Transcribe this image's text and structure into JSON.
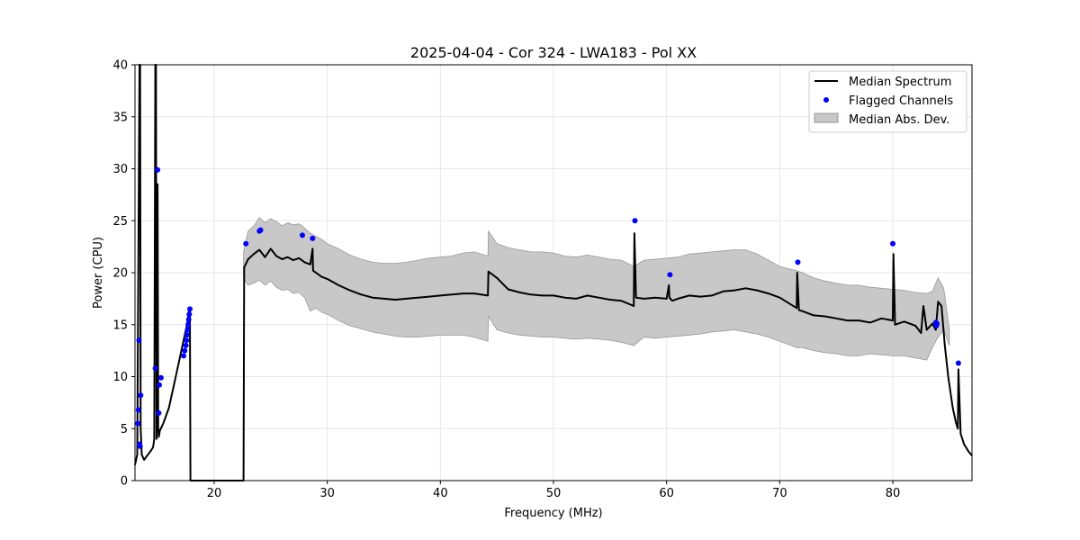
{
  "chart_data": {
    "type": "line",
    "title": "2025-04-04 - Cor 324 - LWA183 - Pol XX",
    "xlabel": "Frequency (MHz)",
    "ylabel": "Power (CPU)",
    "xlim": [
      13.0,
      87.0
    ],
    "ylim": [
      0,
      40
    ],
    "xticks": [
      20,
      30,
      40,
      50,
      60,
      70,
      80
    ],
    "yticks": [
      0,
      5,
      10,
      15,
      20,
      25,
      30,
      35,
      40
    ],
    "grid": true,
    "legend_position": "top-right",
    "colors": {
      "median": "#000000",
      "flagged": "#0000ff",
      "mad_fill": "#c8c8c8",
      "mad_edge": "#999999"
    },
    "series": [
      {
        "name": "Median Spectrum",
        "kind": "line",
        "x": [
          13.0,
          13.2,
          13.4,
          13.45,
          13.5,
          13.6,
          13.8,
          14.0,
          14.3,
          14.6,
          14.7,
          14.8,
          14.85,
          14.9,
          15.0,
          15.05,
          15.1,
          15.2,
          15.5,
          16.0,
          16.5,
          17.0,
          17.3,
          17.6,
          17.8,
          17.85,
          17.9,
          20.0,
          22.6,
          22.65,
          23.0,
          23.5,
          24.0,
          24.5,
          25.0,
          25.5,
          26.0,
          26.5,
          27.0,
          27.5,
          28.0,
          28.5,
          28.7,
          28.75,
          29.0,
          29.5,
          30.0,
          31.0,
          32.0,
          33.0,
          34.0,
          35.0,
          36.0,
          37.0,
          38.0,
          39.0,
          40.0,
          41.0,
          42.0,
          43.0,
          44.2,
          44.25,
          45.0,
          46.0,
          47.0,
          48.0,
          49.0,
          50.0,
          51.0,
          52.0,
          53.0,
          54.0,
          55.0,
          56.0,
          57.1,
          57.15,
          57.3,
          58.0,
          59.0,
          60.0,
          60.2,
          60.25,
          60.5,
          61.0,
          62.0,
          63.0,
          64.0,
          65.0,
          66.0,
          67.0,
          68.0,
          69.0,
          70.0,
          71.5,
          71.55,
          71.7,
          72.0,
          73.0,
          74.0,
          75.0,
          76.0,
          77.0,
          78.0,
          79.0,
          80.0,
          80.05,
          80.2,
          81.0,
          82.0,
          82.5,
          82.7,
          83.0,
          83.5,
          83.8,
          84.0,
          84.3,
          84.6,
          84.9,
          85.3,
          85.6,
          85.75,
          85.8,
          86.0,
          86.3,
          86.7,
          87.0
        ],
        "y": [
          1.5,
          2.5,
          40.0,
          40.0,
          5.0,
          2.5,
          2.0,
          2.3,
          2.7,
          3.2,
          4.0,
          40.0,
          40.0,
          4.0,
          28.5,
          5.0,
          4.2,
          4.8,
          5.5,
          7.0,
          9.5,
          12.0,
          13.5,
          15.0,
          16.5,
          16.5,
          0,
          0,
          0,
          20.5,
          21.3,
          21.8,
          22.2,
          21.5,
          22.3,
          21.6,
          21.3,
          21.5,
          21.2,
          21.4,
          21.0,
          20.8,
          22.3,
          20.2,
          20.0,
          19.6,
          19.4,
          18.8,
          18.3,
          17.9,
          17.6,
          17.5,
          17.4,
          17.5,
          17.6,
          17.7,
          17.8,
          17.9,
          18.0,
          18.0,
          17.8,
          20.1,
          19.5,
          18.4,
          18.1,
          17.9,
          17.8,
          17.8,
          17.6,
          17.5,
          17.8,
          17.6,
          17.4,
          17.3,
          16.8,
          23.8,
          17.6,
          17.5,
          17.6,
          17.5,
          18.8,
          17.6,
          17.3,
          17.5,
          17.8,
          17.7,
          17.8,
          18.2,
          18.3,
          18.5,
          18.3,
          18.0,
          17.6,
          16.6,
          20.0,
          16.4,
          16.3,
          15.9,
          15.8,
          15.6,
          15.4,
          15.4,
          15.2,
          15.6,
          15.4,
          21.8,
          15.0,
          15.3,
          14.9,
          14.2,
          16.8,
          14.5,
          15.1,
          14.5,
          17.2,
          16.8,
          13.0,
          10.0,
          7.0,
          5.5,
          5.0,
          10.7,
          4.5,
          3.5,
          2.8,
          2.4
        ]
      },
      {
        "name": "Flagged Channels",
        "kind": "scatter",
        "x": [
          13.25,
          13.3,
          13.35,
          13.4,
          13.45,
          13.5,
          14.8,
          15.0,
          15.1,
          15.15,
          15.3,
          17.3,
          17.4,
          17.5,
          17.55,
          17.6,
          17.65,
          17.7,
          17.75,
          17.8,
          17.85,
          22.8,
          24.0,
          24.1,
          27.8,
          28.7,
          57.2,
          60.3,
          71.6,
          80.0,
          83.8,
          83.85,
          83.9,
          85.8
        ],
        "y": [
          5.5,
          6.8,
          13.5,
          3.5,
          3.3,
          8.2,
          10.8,
          29.9,
          6.5,
          9.2,
          9.9,
          12.0,
          12.5,
          13.0,
          13.5,
          14.0,
          14.5,
          15.0,
          15.5,
          16.0,
          16.5,
          22.8,
          24.0,
          24.1,
          23.6,
          23.3,
          25.0,
          19.8,
          21.0,
          22.8,
          15.2,
          14.9,
          15.1,
          11.3
        ]
      },
      {
        "name": "Median Abs. Dev.",
        "kind": "band",
        "x": [
          22.6,
          23.0,
          23.5,
          24.0,
          24.5,
          25.0,
          25.5,
          26.0,
          26.5,
          27.0,
          27.5,
          28.0,
          28.5,
          29.0,
          29.5,
          30.0,
          31.0,
          32.0,
          33.0,
          34.0,
          35.0,
          36.0,
          37.0,
          38.0,
          39.0,
          40.0,
          41.0,
          42.0,
          43.0,
          44.2,
          44.25,
          45.0,
          46.0,
          47.0,
          48.0,
          49.0,
          50.0,
          51.0,
          52.0,
          53.0,
          54.0,
          55.0,
          56.0,
          57.1,
          58.0,
          59.0,
          60.0,
          61.0,
          62.0,
          63.0,
          64.0,
          65.0,
          66.0,
          67.0,
          68.0,
          69.0,
          70.0,
          71.5,
          72.0,
          73.0,
          74.0,
          75.0,
          76.0,
          77.0,
          78.0,
          79.0,
          80.0,
          81.0,
          82.0,
          83.0,
          83.5,
          84.0,
          84.5,
          85.0
        ],
        "low": [
          19.5,
          18.8,
          19.0,
          19.3,
          18.8,
          19.2,
          18.6,
          18.3,
          18.4,
          18.0,
          18.1,
          17.6,
          16.3,
          16.6,
          16.2,
          16.0,
          15.4,
          14.9,
          14.6,
          14.3,
          14.1,
          13.9,
          13.8,
          13.8,
          13.9,
          14.0,
          14.0,
          14.0,
          13.8,
          13.4,
          15.8,
          14.5,
          14.2,
          14.0,
          13.9,
          13.8,
          13.8,
          13.7,
          13.6,
          13.7,
          13.6,
          13.5,
          13.3,
          13.0,
          13.8,
          13.7,
          13.8,
          13.9,
          14.0,
          14.1,
          14.3,
          14.4,
          14.5,
          14.3,
          14.1,
          13.8,
          13.4,
          12.8,
          12.8,
          12.5,
          12.3,
          12.2,
          12.0,
          12.0,
          12.2,
          12.1,
          12.0,
          12.0,
          11.8,
          11.6,
          12.8,
          13.8,
          14.5,
          13.0
        ],
        "high": [
          22.0,
          24.0,
          24.5,
          25.3,
          24.8,
          25.2,
          24.9,
          24.5,
          24.8,
          24.6,
          24.7,
          24.3,
          23.8,
          23.5,
          23.2,
          22.8,
          22.3,
          21.7,
          21.3,
          21.0,
          20.9,
          20.9,
          21.0,
          21.2,
          21.4,
          21.5,
          21.6,
          21.9,
          22.0,
          21.6,
          24.0,
          22.8,
          22.4,
          22.2,
          22.0,
          22.0,
          21.9,
          21.6,
          21.5,
          21.7,
          21.5,
          21.3,
          21.2,
          20.6,
          21.2,
          21.3,
          21.4,
          21.5,
          21.8,
          21.9,
          22.0,
          22.1,
          22.2,
          22.2,
          21.8,
          21.2,
          20.6,
          20.2,
          20.0,
          19.5,
          19.2,
          19.0,
          18.8,
          18.8,
          18.6,
          18.5,
          18.4,
          18.3,
          18.1,
          18.0,
          18.2,
          19.5,
          18.5,
          14.5
        ]
      }
    ]
  }
}
